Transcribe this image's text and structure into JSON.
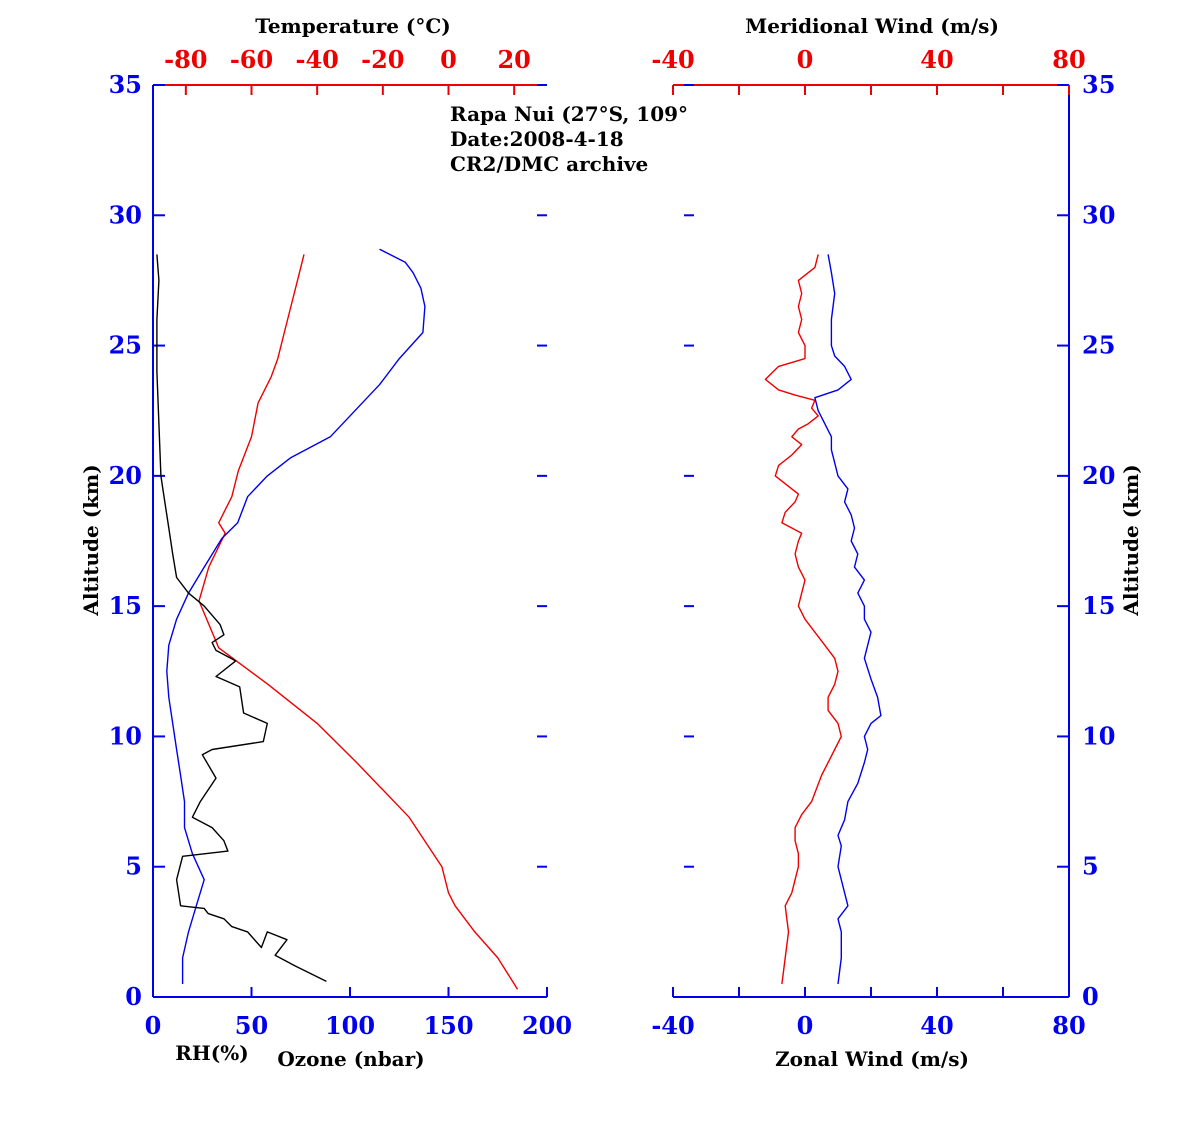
{
  "colors": {
    "blue": "#0000ee",
    "red": "#ee0000",
    "black": "#000000"
  },
  "annotation": {
    "site": "Rapa Nui (27°S, 109°",
    "date": "Date:2008-4-18",
    "archive": "CR2/DMC archive"
  },
  "chart_data": [
    {
      "type": "line",
      "panel": "left",
      "y_axis": {
        "label": "Altitude (km)",
        "range": [
          0,
          35
        ],
        "ticks": [
          0,
          5,
          10,
          15,
          20,
          25,
          30,
          35
        ]
      },
      "top_axis": {
        "label": "Temperature (°C)",
        "range": [
          -90,
          30
        ],
        "ticks": [
          -80,
          -60,
          -40,
          -20,
          0,
          20
        ]
      },
      "bottom_axis": {
        "label": "Ozone (nbar)",
        "range": [
          0,
          200
        ],
        "ticks": [
          0,
          50,
          100,
          150,
          200
        ]
      },
      "rh_label": "RH(%)",
      "series": [
        {
          "color": "red",
          "axis": "top",
          "x": [
            21,
            15,
            8,
            2,
            0,
            -2,
            -12,
            -28,
            -40,
            -55,
            -70,
            -76,
            -73,
            -68,
            -70,
            -66,
            -64,
            -60,
            -58,
            -54,
            -52,
            -50,
            -48,
            -46,
            -44
          ],
          "y": [
            0.3,
            1.5,
            2.5,
            3.5,
            4,
            5,
            6.9,
            9,
            10.5,
            12,
            13.4,
            15.2,
            16.5,
            17.8,
            18.2,
            19.2,
            20.2,
            21.5,
            22.8,
            23.8,
            24.5,
            25.5,
            26.5,
            27.5,
            28.5
          ]
        },
        {
          "color": "blue",
          "axis": "bottom",
          "x": [
            15,
            15,
            18,
            22,
            26,
            20,
            16,
            16,
            14,
            12,
            10,
            8,
            7,
            8,
            12,
            18,
            26,
            35,
            43,
            48,
            58,
            70,
            90,
            115,
            125,
            137,
            138,
            136,
            132,
            128,
            115
          ],
          "y": [
            0.5,
            1.5,
            2.5,
            3.5,
            4.5,
            5.5,
            6.5,
            7.5,
            8.5,
            9.5,
            10.5,
            11.5,
            12.5,
            13.5,
            14.5,
            15.5,
            16.5,
            17.6,
            18.2,
            19.2,
            20,
            20.7,
            21.5,
            23.5,
            24.5,
            25.5,
            26.5,
            27.2,
            27.8,
            28.2,
            28.7
          ]
        },
        {
          "color": "black",
          "axis": "bottom",
          "x": [
            88,
            72,
            62,
            68,
            58,
            55,
            48,
            40,
            36,
            28,
            26,
            14,
            12,
            15,
            38,
            36,
            30,
            20,
            24,
            32,
            25,
            30,
            56,
            58,
            46,
            44,
            32,
            42,
            32,
            30,
            36,
            34,
            26,
            18,
            12,
            10,
            8,
            6,
            4,
            3,
            2,
            2,
            3,
            2
          ],
          "y": [
            0.6,
            1.2,
            1.6,
            2.2,
            2.5,
            1.9,
            2.5,
            2.7,
            3.0,
            3.2,
            3.4,
            3.5,
            4.5,
            5.4,
            5.6,
            6.0,
            6.5,
            6.9,
            7.5,
            8.4,
            9.3,
            9.5,
            9.8,
            10.5,
            10.9,
            11.9,
            12.3,
            12.9,
            13.3,
            13.6,
            13.9,
            14.3,
            15.0,
            15.5,
            16.1,
            17.0,
            18.0,
            19.0,
            20.0,
            22.0,
            24.0,
            26.0,
            27.5,
            28.5
          ]
        }
      ]
    },
    {
      "type": "line",
      "panel": "right",
      "y_axis": {
        "label": "Altitude (km)",
        "range": [
          0,
          35
        ],
        "ticks": [
          0,
          5,
          10,
          15,
          20,
          25,
          30,
          35
        ]
      },
      "top_axis": {
        "label": "Meridional Wind (m/s)",
        "range": [
          -40,
          80
        ],
        "ticks": [
          -40,
          0,
          40,
          80
        ]
      },
      "bottom_axis": {
        "label": "Zonal Wind (m/s)",
        "range": [
          -40,
          80
        ],
        "ticks": [
          -40,
          0,
          40,
          80
        ]
      },
      "series": [
        {
          "color": "red",
          "axis": "top",
          "x": [
            -7,
            -6,
            -5,
            -6,
            -4,
            -3,
            -2,
            -2,
            -3,
            -3,
            -1,
            2,
            5,
            9,
            11,
            10,
            7,
            7,
            9,
            10,
            9,
            6,
            0,
            -2,
            -1,
            0,
            -2,
            -3,
            -2,
            -1,
            -7,
            -6,
            -3,
            -2,
            -5,
            -9,
            -8,
            -4,
            -1,
            -4,
            -2,
            1,
            4,
            2,
            3,
            -3,
            -8,
            -12,
            -8,
            0,
            0,
            -2,
            -1,
            -2,
            -1,
            -2,
            3,
            4
          ],
          "y": [
            0.5,
            1.5,
            2.5,
            3.5,
            4.0,
            4.5,
            5.0,
            5.5,
            6.0,
            6.5,
            7.0,
            7.5,
            8.5,
            9.5,
            10.0,
            10.5,
            11.0,
            11.5,
            12.0,
            12.5,
            13.0,
            13.5,
            14.5,
            15.0,
            15.5,
            16.0,
            16.5,
            17.0,
            17.5,
            17.8,
            18.2,
            18.6,
            19.0,
            19.3,
            19.6,
            20.0,
            20.4,
            20.8,
            21.2,
            21.5,
            21.8,
            22.0,
            22.3,
            22.6,
            22.9,
            23.1,
            23.3,
            23.7,
            24.2,
            24.5,
            25.0,
            25.5,
            26.0,
            26.5,
            27.0,
            27.5,
            28.0,
            28.5
          ]
        },
        {
          "color": "blue",
          "axis": "bottom",
          "x": [
            10,
            11,
            11,
            10,
            13,
            12,
            10,
            11,
            10,
            12,
            13,
            16,
            18,
            19,
            18,
            20,
            23,
            22,
            20,
            18,
            19,
            20,
            18,
            18,
            16,
            18,
            15,
            16,
            14,
            15,
            14,
            12,
            13,
            10,
            9,
            8,
            8,
            6,
            4,
            3,
            10,
            14,
            12,
            9,
            8,
            8,
            9,
            8,
            7
          ],
          "y": [
            0.5,
            1.5,
            2.5,
            3.0,
            3.5,
            4.0,
            5.0,
            5.8,
            6.2,
            6.8,
            7.5,
            8.2,
            9.0,
            9.5,
            10.0,
            10.5,
            10.8,
            11.5,
            12.2,
            13.0,
            13.5,
            14.0,
            14.5,
            15.0,
            15.5,
            16.0,
            16.5,
            17.0,
            17.5,
            18.0,
            18.5,
            19.0,
            19.5,
            20.0,
            20.5,
            21.0,
            21.5,
            22.0,
            22.5,
            23.0,
            23.3,
            23.7,
            24.2,
            24.6,
            25.0,
            26.0,
            27.0,
            27.8,
            28.5
          ]
        }
      ]
    }
  ]
}
